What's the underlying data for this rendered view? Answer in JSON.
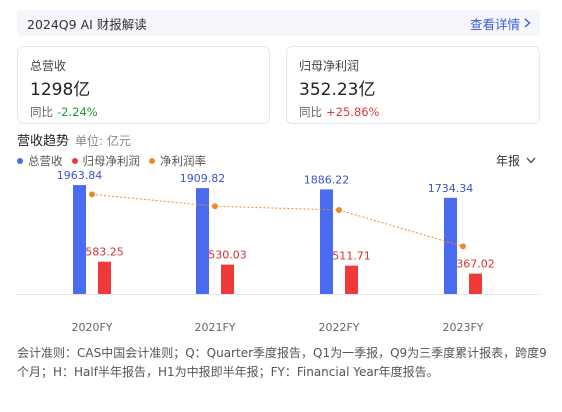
{
  "report_bar": {
    "title": "2024Q9 AI 财报解读",
    "link_label": "查看详情"
  },
  "cards": [
    {
      "label": "总营收",
      "value": "1298亿",
      "yoy_label": "同比",
      "yoy_value": "-2.24%"
    },
    {
      "label": "归母净利润",
      "value": "352.23亿",
      "yoy_label": "同比",
      "yoy_value": "+25.86%"
    }
  ],
  "trend": {
    "title": "营收趋势",
    "unit": "单位: 亿元"
  },
  "legend": [
    {
      "label": "总营收",
      "color": "#4a6cf0"
    },
    {
      "label": "归母净利润",
      "color": "#f03a3a"
    },
    {
      "label": "净利润率",
      "color": "#ee8a2e"
    }
  ],
  "period_select": {
    "value": "年报"
  },
  "chart_data": {
    "type": "bar",
    "categories": [
      "2020FY",
      "2021FY",
      "2022FY",
      "2023FY"
    ],
    "series": [
      {
        "name": "总营收",
        "kind": "bar",
        "color": "#4a6cf0",
        "values": [
          1963.84,
          1909.82,
          1886.22,
          1734.34
        ],
        "labels": [
          "1963.84",
          "1909.82",
          "1886.22",
          "1734.34"
        ]
      },
      {
        "name": "归母净利润",
        "kind": "bar",
        "color": "#f03a3a",
        "values": [
          583.25,
          530.03,
          511.71,
          367.02
        ],
        "labels": [
          "583.25",
          "530.03",
          "511.71",
          "367.02"
        ]
      },
      {
        "name": "净利润率",
        "kind": "line",
        "color": "#ee8a2e",
        "values": [
          29.7,
          27.75,
          27.13,
          21.16
        ]
      }
    ],
    "ylim": [
      0,
      2200
    ],
    "grid": false
  },
  "footnote": "会计准则：CAS中国会计准则；Q：Quarter季度报告，Q1为一季报，Q9为三季度累计报表，跨度9个月；H：Half半年报告，H1为中报即半年报；FY：Financial Year年度报告。"
}
